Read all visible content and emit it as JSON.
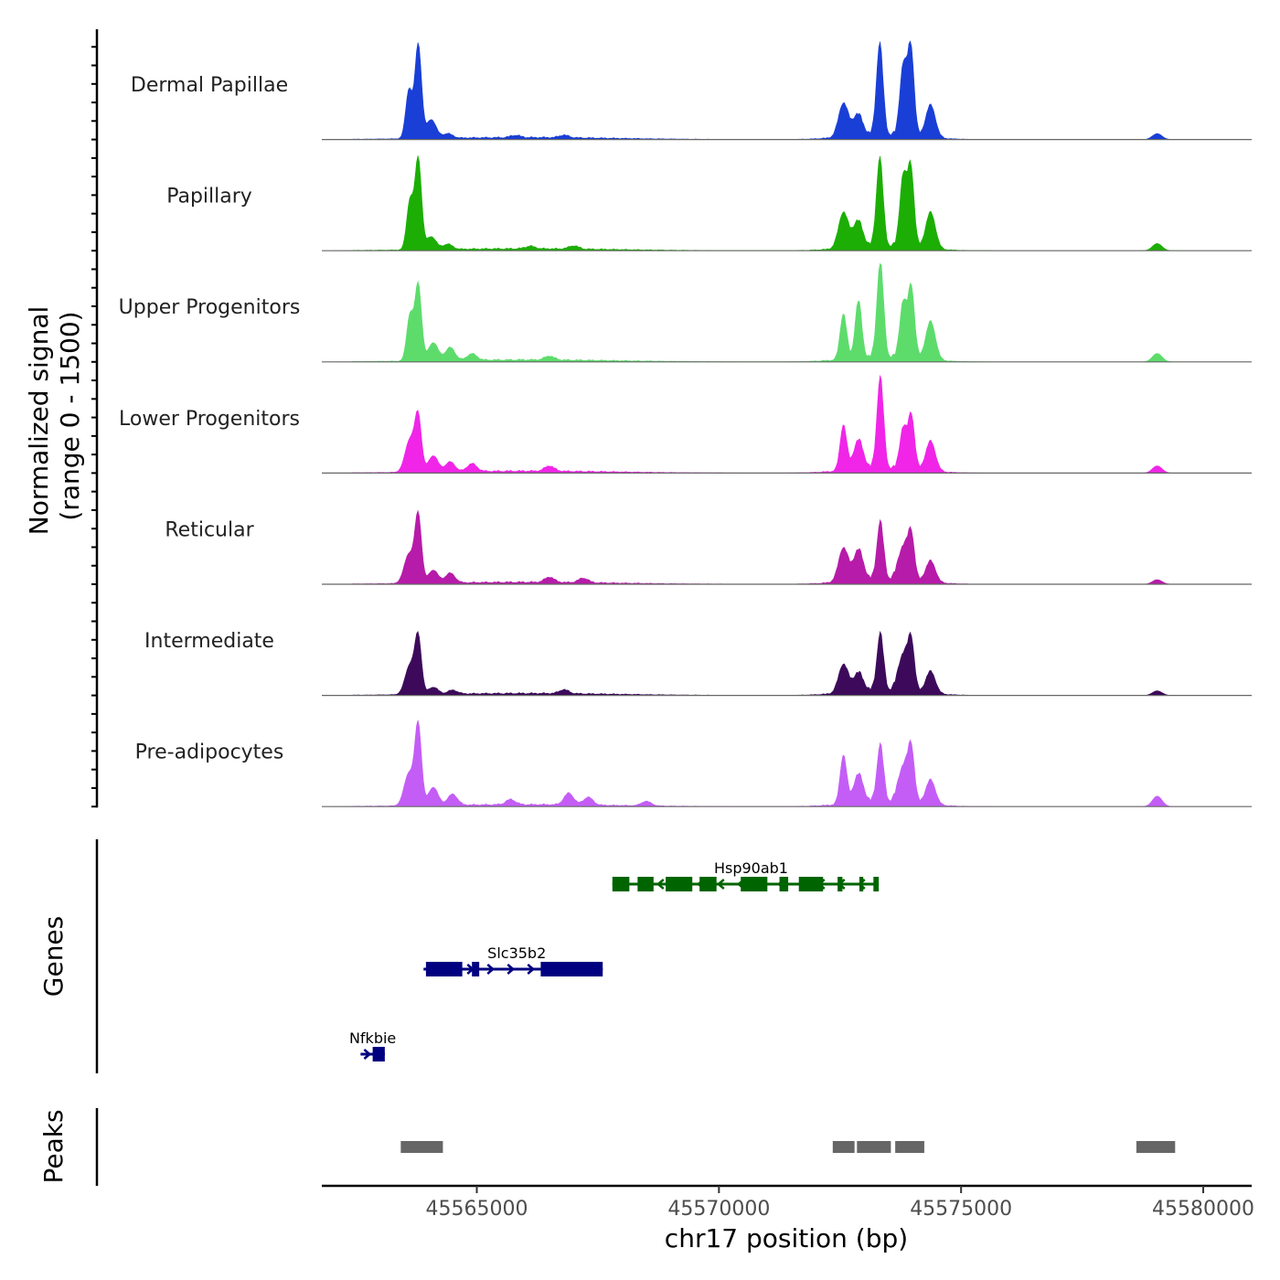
{
  "chart_data": {
    "type": "area",
    "title": "",
    "ylabel": "Normalized signal\n(range 0 - 1500)",
    "ylabel_lines": [
      "Normalized signal",
      "(range 0 - 1500)"
    ],
    "ylim": [
      0,
      1500
    ],
    "xlabel": "chr17 position (bp)",
    "xlim": [
      45561800,
      45581000
    ],
    "x_ticks": [
      45565000,
      45570000,
      45575000,
      45580000
    ],
    "x_tick_labels": [
      "45565000",
      "45570000",
      "45575000",
      "45580000"
    ],
    "tracks": [
      {
        "name": "Dermal Papillae",
        "color": "#1a3fd6",
        "peaks": [
          [
            45563790,
            1450
          ],
          [
            45563600,
            750
          ],
          [
            45564060,
            290
          ],
          [
            45564400,
            70
          ],
          [
            45565800,
            35
          ],
          [
            45566800,
            40
          ],
          [
            45572570,
            520
          ],
          [
            45572870,
            330
          ],
          [
            45573320,
            1410
          ],
          [
            45573800,
            1040
          ],
          [
            45573960,
            1390
          ],
          [
            45574370,
            500
          ],
          [
            45579050,
            90
          ]
        ]
      },
      {
        "name": "Papillary",
        "color": "#1cae05",
        "peaks": [
          [
            45563790,
            1400
          ],
          [
            45563620,
            750
          ],
          [
            45564060,
            200
          ],
          [
            45564400,
            80
          ],
          [
            45566100,
            40
          ],
          [
            45567000,
            50
          ],
          [
            45572570,
            550
          ],
          [
            45572870,
            400
          ],
          [
            45573320,
            1360
          ],
          [
            45573800,
            1060
          ],
          [
            45573960,
            1240
          ],
          [
            45574370,
            560
          ],
          [
            45579050,
            110
          ]
        ]
      },
      {
        "name": "Upper Progenitors",
        "color": "#5ddc6c",
        "peaks": [
          [
            45563790,
            1180
          ],
          [
            45563620,
            700
          ],
          [
            45564100,
            280
          ],
          [
            45564450,
            200
          ],
          [
            45564900,
            100
          ],
          [
            45566500,
            60
          ],
          [
            45572570,
            700
          ],
          [
            45572880,
            880
          ],
          [
            45573330,
            1470
          ],
          [
            45573800,
            840
          ],
          [
            45573970,
            1110
          ],
          [
            45574370,
            590
          ],
          [
            45579050,
            130
          ]
        ]
      },
      {
        "name": "Lower Progenitors",
        "color": "#f025e8",
        "peaks": [
          [
            45563790,
            820
          ],
          [
            45563620,
            500
          ],
          [
            45564100,
            250
          ],
          [
            45564450,
            150
          ],
          [
            45564900,
            120
          ],
          [
            45566500,
            80
          ],
          [
            45572570,
            700
          ],
          [
            45572880,
            450
          ],
          [
            45573330,
            1400
          ],
          [
            45573800,
            620
          ],
          [
            45573970,
            850
          ],
          [
            45574370,
            460
          ],
          [
            45579050,
            110
          ]
        ]
      },
      {
        "name": "Reticular",
        "color": "#b71ba9",
        "peaks": [
          [
            45563790,
            1030
          ],
          [
            45563600,
            450
          ],
          [
            45564100,
            200
          ],
          [
            45564450,
            150
          ],
          [
            45566500,
            80
          ],
          [
            45567200,
            70
          ],
          [
            45572570,
            520
          ],
          [
            45572880,
            470
          ],
          [
            45573330,
            890
          ],
          [
            45573800,
            510
          ],
          [
            45573970,
            680
          ],
          [
            45574370,
            330
          ],
          [
            45579050,
            70
          ]
        ]
      },
      {
        "name": "Intermediate",
        "color": "#3d0a5b",
        "peaks": [
          [
            45563790,
            850
          ],
          [
            45563620,
            450
          ],
          [
            45564100,
            110
          ],
          [
            45564500,
            60
          ],
          [
            45566800,
            60
          ],
          [
            45572570,
            440
          ],
          [
            45572880,
            290
          ],
          [
            45573330,
            880
          ],
          [
            45573800,
            560
          ],
          [
            45573970,
            750
          ],
          [
            45574370,
            340
          ],
          [
            45579050,
            70
          ]
        ]
      },
      {
        "name": "Pre-adipocytes",
        "color": "#c45df6",
        "peaks": [
          [
            45563790,
            1220
          ],
          [
            45563600,
            500
          ],
          [
            45564100,
            280
          ],
          [
            45564500,
            170
          ],
          [
            45565700,
            80
          ],
          [
            45566900,
            180
          ],
          [
            45567300,
            120
          ],
          [
            45568500,
            70
          ],
          [
            45572570,
            750
          ],
          [
            45572880,
            440
          ],
          [
            45573330,
            880
          ],
          [
            45573800,
            550
          ],
          [
            45573970,
            810
          ],
          [
            45574370,
            380
          ],
          [
            45579050,
            160
          ]
        ]
      }
    ],
    "genes": [
      {
        "name": "Hsp90ab1",
        "color": "#006400",
        "strand": "-",
        "start": 45567800,
        "end": 45573300,
        "exons": [
          [
            45567800,
            45568150
          ],
          [
            45568320,
            45568650
          ],
          [
            45568900,
            45569450
          ],
          [
            45569600,
            45569950
          ],
          [
            45570450,
            45571000
          ],
          [
            45571250,
            45571430
          ],
          [
            45571650,
            45572150
          ],
          [
            45572450,
            45572550
          ],
          [
            45572900,
            45572980
          ],
          [
            45573190,
            45573300
          ]
        ]
      },
      {
        "name": "Slc35b2",
        "color": "#000080",
        "strand": "+",
        "start": 45563900,
        "end": 45567600,
        "exons": [
          [
            45563950,
            45564700
          ],
          [
            45564900,
            45565050
          ],
          [
            45566320,
            45567600
          ]
        ]
      },
      {
        "name": "Nfkbie",
        "color": "#000080",
        "strand": "+",
        "start": 45562600,
        "end": 45563100,
        "exons": [
          [
            45562850,
            45563100
          ]
        ]
      }
    ],
    "peaks_regions": [
      [
        45563430,
        45564300
      ],
      [
        45572350,
        45572800
      ],
      [
        45572850,
        45573550
      ],
      [
        45573640,
        45574240
      ],
      [
        45578620,
        45579420
      ]
    ],
    "peaks_color": "#666666",
    "panel_labels": {
      "genes": "Genes",
      "peaks": "Peaks"
    }
  }
}
